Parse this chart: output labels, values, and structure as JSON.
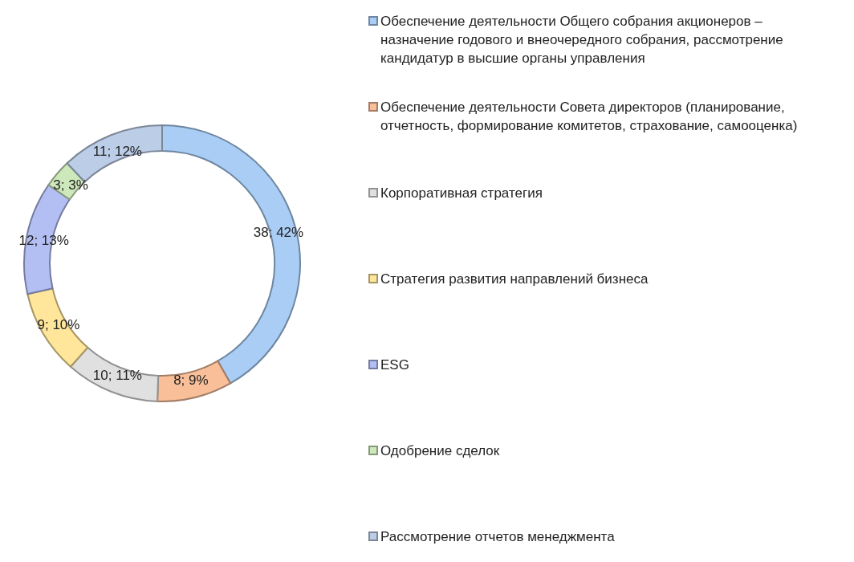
{
  "chart_data": {
    "type": "donut",
    "categories": [
      "Обеспечение деятельности Общего собрания акционеров – назначение годового и внеочередного собрания, рассмотрение кандидатур в высшие органы управления",
      "Обеспечение деятельности Совета директоров (планирование, отчетность, формирование комитетов, страхование, самооценка)",
      "Корпоративная стратегия",
      "Стратегия развития направлений бизнеса",
      "ESG",
      "Одобрение сделок",
      "Рассмотрение отчетов менеджмента"
    ],
    "values": [
      38,
      8,
      10,
      9,
      12,
      3,
      11
    ],
    "value_labels": [
      "38; 42%",
      "8; 9%",
      "10; 11%",
      "9; 10%",
      "12; 13%",
      "3; 3%",
      "11; 12%"
    ],
    "colors": [
      "#a9cdf5",
      "#f8bf99",
      "#e0e0e0",
      "#ffe69a",
      "#b3bff3",
      "#cde8bb",
      "#bccde8"
    ],
    "legend": "right"
  }
}
